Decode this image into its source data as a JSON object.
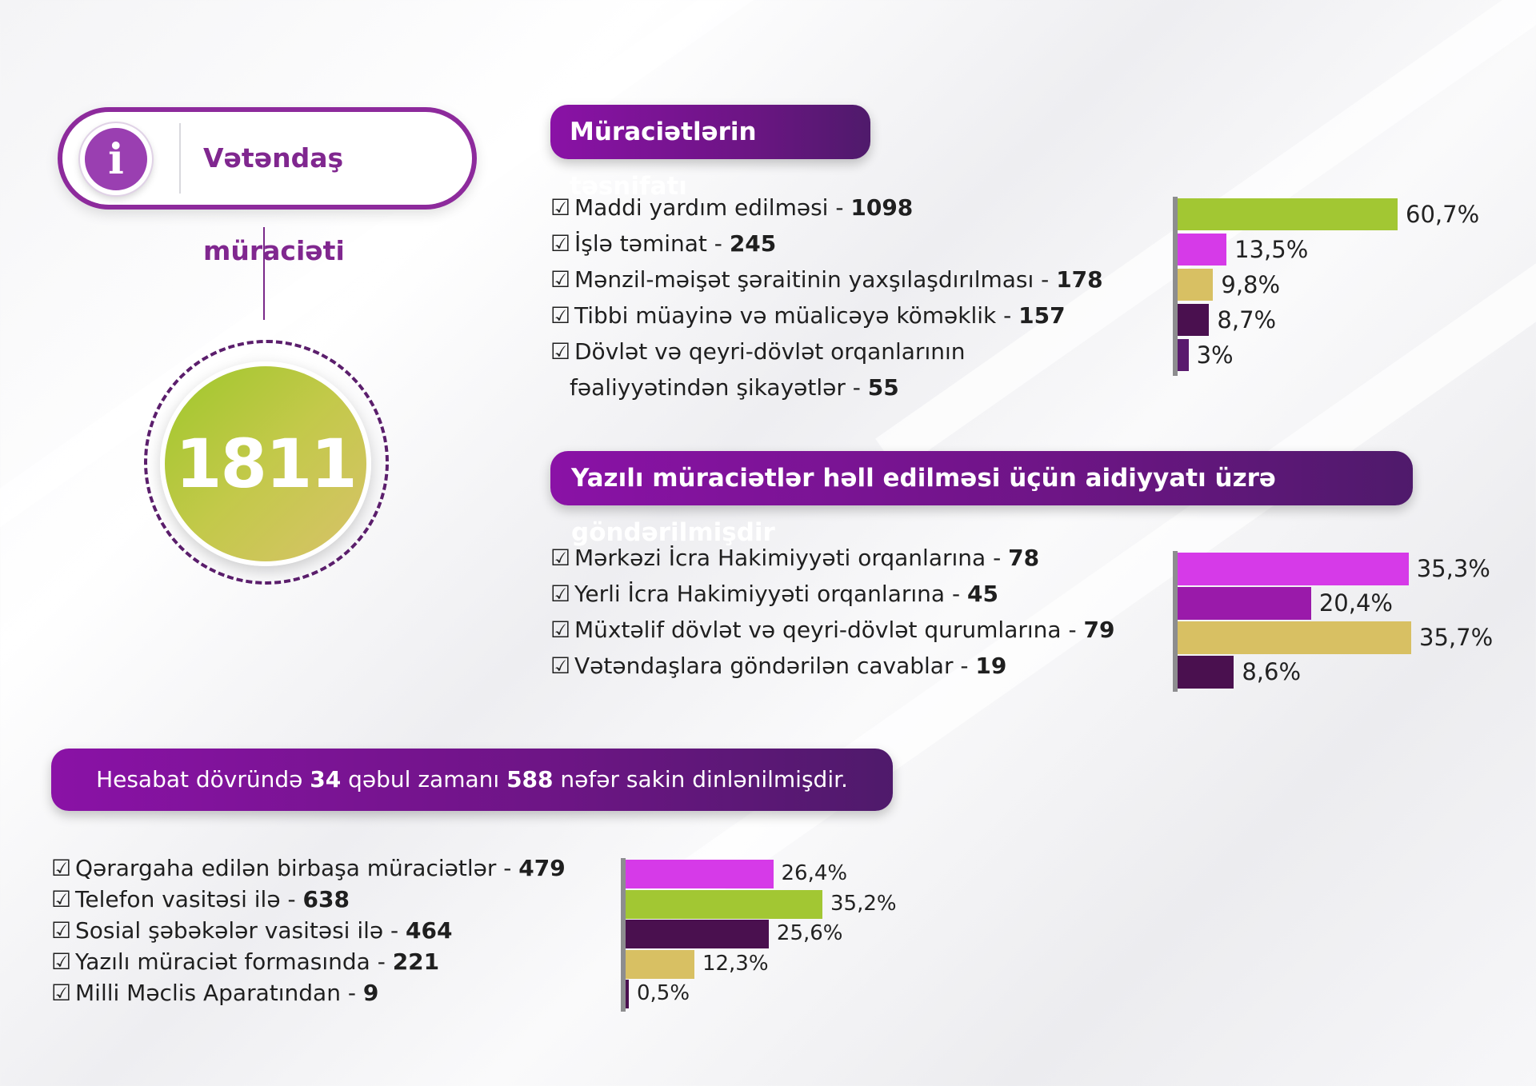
{
  "header": {
    "title": "Vətəndaş müraciəti",
    "icon": "info-icon"
  },
  "total": {
    "value": "1811"
  },
  "section1": {
    "title": "Müraciətlərin təsnifatı",
    "items": [
      {
        "label": "Maddi yardım edilməsi - ",
        "value": "1098"
      },
      {
        "label": "İşlə təminat - ",
        "value": "245"
      },
      {
        "label": "Mənzil-məişət şəraitinin yaxşılaşdırılması -  ",
        "value": "178"
      },
      {
        "label": "Tibbi müayinə və müalicəyə köməklik -  ",
        "value": "157"
      },
      {
        "label": "Dövlət və qeyri-dövlət orqanlarının",
        "label2": "fəaliyyətindən şikayətlər - ",
        "value": "55"
      }
    ]
  },
  "section2": {
    "title": "Yazılı müraciətlər həll edilməsi üçün aidiyyatı üzrə göndərilmişdir",
    "items": [
      {
        "label": "Mərkəzi İcra Hakimiyyəti orqanlarına - ",
        "value": "78"
      },
      {
        "label": "Yerli İcra Hakimiyyəti orqanlarına - ",
        "value": "45"
      },
      {
        "label": "Müxtəlif dövlət və qeyri-dövlət qurumlarına - ",
        "value": "79"
      },
      {
        "label": "Vətəndaşlara göndərilən cavablar - ",
        "value": "19"
      }
    ]
  },
  "section3": {
    "banner_pre": "Hesabat dövründə ",
    "banner_num1": "34",
    "banner_mid": " qəbul zamanı ",
    "banner_num2": "588",
    "banner_post": " nəfər sakin dinlənilmişdir.",
    "items": [
      {
        "label": "Qərargaha edilən birbaşa müraciətlər - ",
        "value": "479"
      },
      {
        "label": "Telefon vasitəsi ilə - ",
        "value": "638"
      },
      {
        "label": "Sosial şəbəkələr vasitəsi ilə - ",
        "value": "464"
      },
      {
        "label": "Yazılı müraciət formasında - ",
        "value": "221"
      },
      {
        "label": "Milli Məclis Aparatından - ",
        "value": "9"
      }
    ]
  },
  "chart_data": [
    {
      "type": "bar",
      "orientation": "horizontal",
      "values": [
        60.7,
        13.5,
        9.8,
        8.7,
        3
      ],
      "labels": [
        "60,7%",
        "13,5%",
        "9,8%",
        "8,7%",
        "3%"
      ],
      "colors": [
        "#a2c733",
        "#d63ae8",
        "#d8c063",
        "#4a104f",
        "#5a1a6e"
      ],
      "xlim": [
        0,
        60.7
      ]
    },
    {
      "type": "bar",
      "orientation": "horizontal",
      "values": [
        35.3,
        20.4,
        35.7,
        8.6
      ],
      "labels": [
        "35,3%",
        "20,4%",
        "35,7%",
        "8,6%"
      ],
      "colors": [
        "#d63ae8",
        "#9a1aaa",
        "#d8c063",
        "#4a104f"
      ],
      "xlim": [
        0,
        35.7
      ]
    },
    {
      "type": "bar",
      "orientation": "horizontal",
      "values": [
        26.4,
        35.2,
        25.6,
        12.3,
        0.5
      ],
      "labels": [
        "26,4%",
        "35,2%",
        "25,6%",
        "12,3%",
        "0,5%"
      ],
      "colors": [
        "#d63ae8",
        "#a2c733",
        "#4a104f",
        "#d8c063",
        "#4a104f"
      ],
      "xlim": [
        0,
        35.2
      ]
    }
  ]
}
